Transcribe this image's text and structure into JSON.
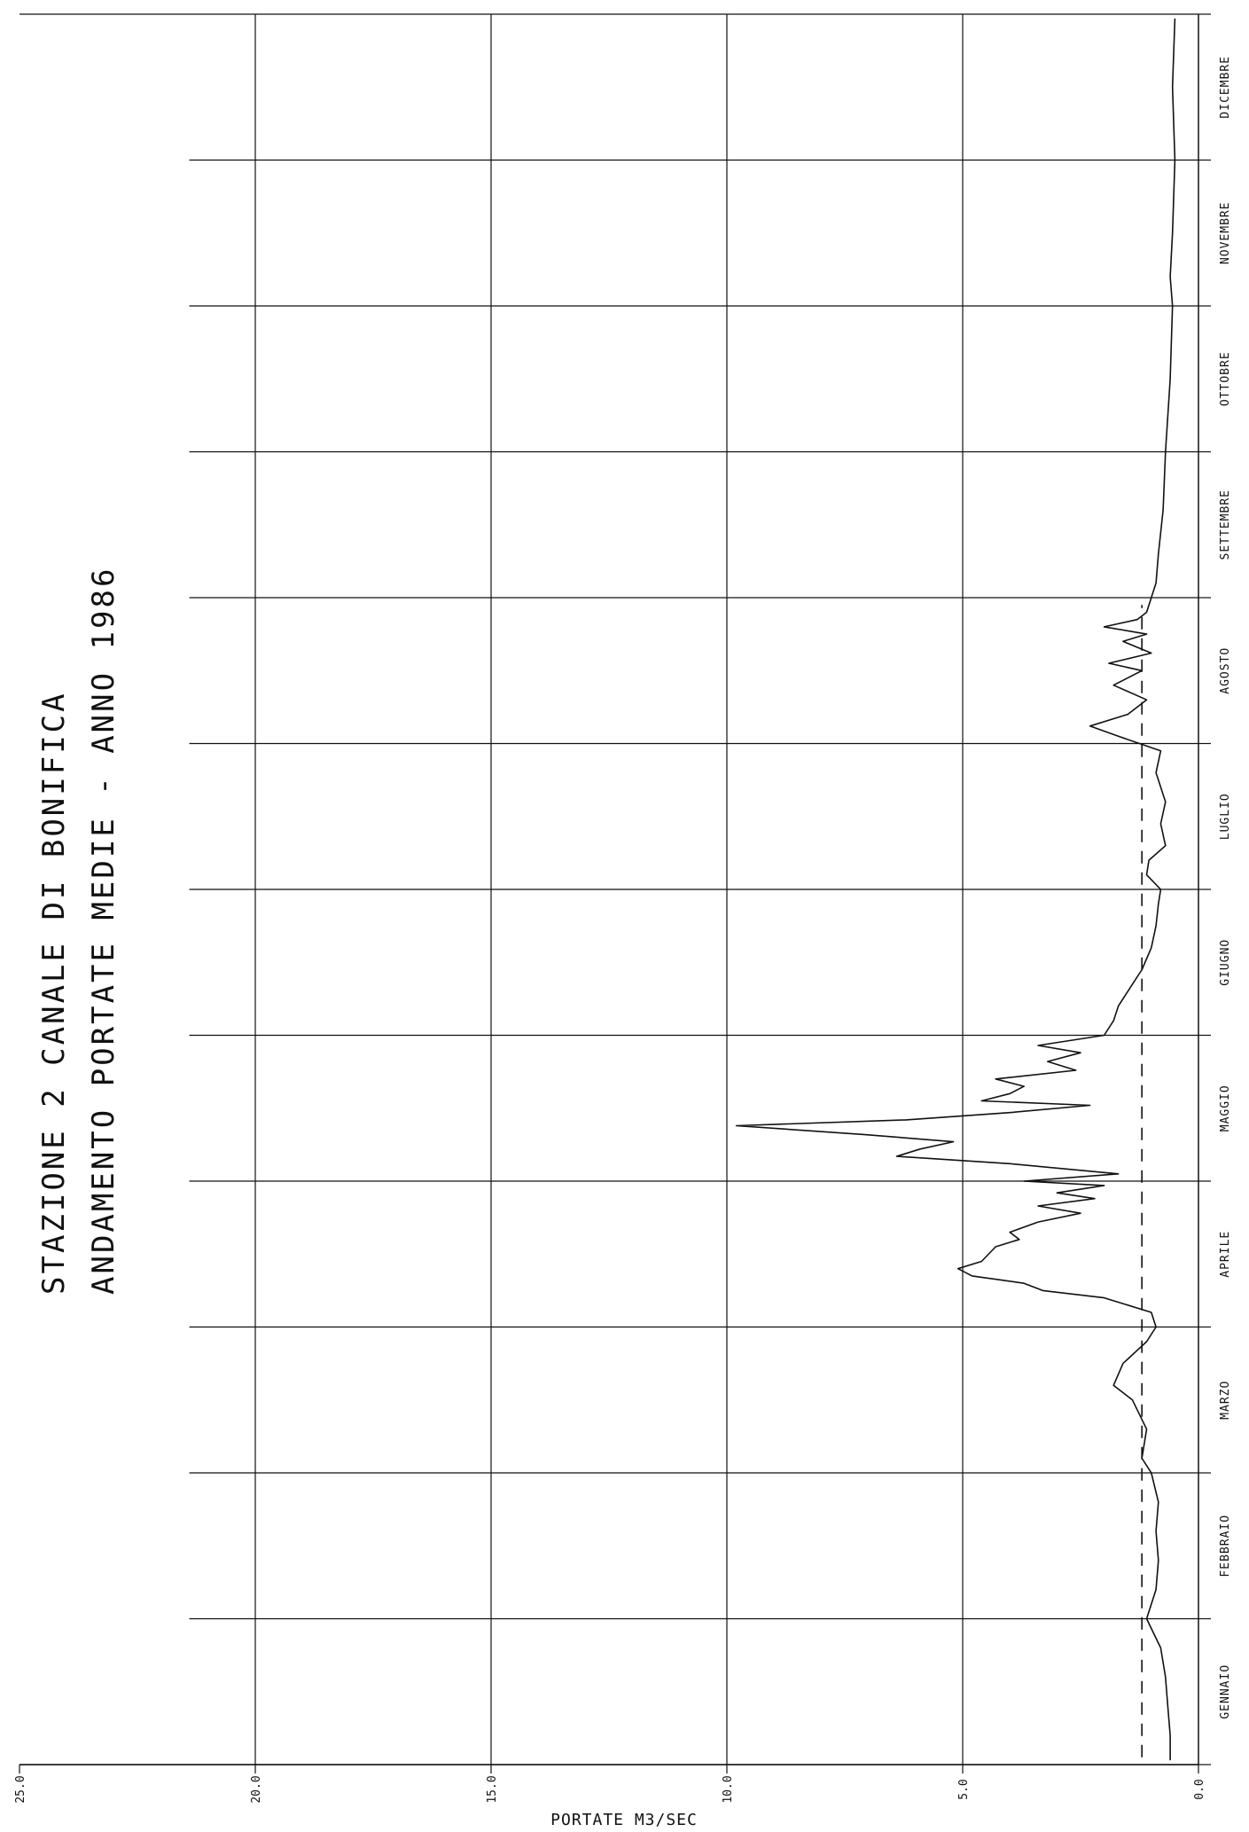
{
  "chart_data": {
    "type": "line",
    "title_line1": "STAZIONE  2   CANALE DI BONIFICA",
    "title_line2": "ANDAMENTO PORTATE MEDIE  -  ANNO 1986",
    "ylabel": "PORTATE M3/SEC",
    "ylim": [
      0,
      25
    ],
    "yticks": [
      "0.0",
      "5.0",
      "10.0",
      "15.0",
      "20.0",
      "25.0"
    ],
    "months": [
      "GENNAIO",
      "FEBBRAIO",
      "MARZO",
      "APRILE",
      "MAGGIO",
      "GIUGNO",
      "LUGLIO",
      "AGOSTO",
      "SETTEMBRE",
      "OTTOBRE",
      "NOVEMBRE",
      "DICEMBRE"
    ],
    "grid": true,
    "reference_line": {
      "style": "dashed",
      "value": 1.2
    },
    "series": [
      {
        "values": [
          [
            0.03,
            0.6
          ],
          [
            0.2,
            0.6
          ],
          [
            0.4,
            0.65
          ],
          [
            0.6,
            0.7
          ],
          [
            0.8,
            0.8
          ],
          [
            1.0,
            1.1
          ],
          [
            1.2,
            0.9
          ],
          [
            1.4,
            0.85
          ],
          [
            1.6,
            0.9
          ],
          [
            1.8,
            0.85
          ],
          [
            2.0,
            1.0
          ],
          [
            2.1,
            1.2
          ],
          [
            2.3,
            1.1
          ],
          [
            2.5,
            1.4
          ],
          [
            2.6,
            1.8
          ],
          [
            2.75,
            1.6
          ],
          [
            2.9,
            1.1
          ],
          [
            3.0,
            0.9
          ],
          [
            3.1,
            1.0
          ],
          [
            3.2,
            2.0
          ],
          [
            3.25,
            3.3
          ],
          [
            3.3,
            3.7
          ],
          [
            3.35,
            4.8
          ],
          [
            3.4,
            5.1
          ],
          [
            3.45,
            4.6
          ],
          [
            3.55,
            4.3
          ],
          [
            3.6,
            3.8
          ],
          [
            3.65,
            4.0
          ],
          [
            3.72,
            3.4
          ],
          [
            3.78,
            2.5
          ],
          [
            3.83,
            3.4
          ],
          [
            3.88,
            2.2
          ],
          [
            3.92,
            3.0
          ],
          [
            3.97,
            2.0
          ],
          [
            4.0,
            3.7
          ],
          [
            4.05,
            1.7
          ],
          [
            4.12,
            4.0
          ],
          [
            4.17,
            6.4
          ],
          [
            4.22,
            5.9
          ],
          [
            4.27,
            5.2
          ],
          [
            4.32,
            7.1
          ],
          [
            4.38,
            9.8
          ],
          [
            4.42,
            6.2
          ],
          [
            4.47,
            4.0
          ],
          [
            4.52,
            2.3
          ],
          [
            4.55,
            4.6
          ],
          [
            4.6,
            4.0
          ],
          [
            4.65,
            3.7
          ],
          [
            4.7,
            4.3
          ],
          [
            4.76,
            2.6
          ],
          [
            4.82,
            3.2
          ],
          [
            4.88,
            2.5
          ],
          [
            4.93,
            3.4
          ],
          [
            5.0,
            2.0
          ],
          [
            5.1,
            1.8
          ],
          [
            5.2,
            1.7
          ],
          [
            5.35,
            1.4
          ],
          [
            5.45,
            1.2
          ],
          [
            5.6,
            1.0
          ],
          [
            5.75,
            0.9
          ],
          [
            5.9,
            0.85
          ],
          [
            6.0,
            0.8
          ],
          [
            6.1,
            1.1
          ],
          [
            6.2,
            1.05
          ],
          [
            6.3,
            0.7
          ],
          [
            6.45,
            0.8
          ],
          [
            6.6,
            0.7
          ],
          [
            6.8,
            0.9
          ],
          [
            6.95,
            0.8
          ],
          [
            7.05,
            1.7
          ],
          [
            7.12,
            2.3
          ],
          [
            7.2,
            1.5
          ],
          [
            7.3,
            1.1
          ],
          [
            7.4,
            1.8
          ],
          [
            7.5,
            1.2
          ],
          [
            7.55,
            1.9
          ],
          [
            7.62,
            1.0
          ],
          [
            7.7,
            1.6
          ],
          [
            7.75,
            1.1
          ],
          [
            7.8,
            2.0
          ],
          [
            7.85,
            1.3
          ],
          [
            7.9,
            1.1
          ],
          [
            8.0,
            1.0
          ],
          [
            8.1,
            0.9
          ],
          [
            8.3,
            0.85
          ],
          [
            8.6,
            0.75
          ],
          [
            9.0,
            0.7
          ],
          [
            9.5,
            0.6
          ],
          [
            10.0,
            0.55
          ],
          [
            10.2,
            0.6
          ],
          [
            10.5,
            0.55
          ],
          [
            11.0,
            0.5
          ],
          [
            11.5,
            0.55
          ],
          [
            11.97,
            0.5
          ]
        ]
      }
    ]
  }
}
